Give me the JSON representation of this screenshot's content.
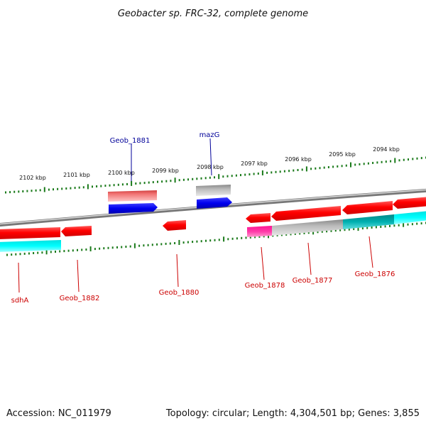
{
  "title": "Geobacter sp. FRC-32, complete genome",
  "footer": {
    "accession": "Accession: NC_011979",
    "summary": "Topology: circular; Length: 4,304,501 bp; Genes: 3,855"
  },
  "scale_labels": [
    "2102 kbp",
    "2101 kbp",
    "2100 kbp",
    "2099 kbp",
    "2098 kbp",
    "2097 kbp",
    "2096 kbp",
    "2095 kbp",
    "2094 kbp"
  ],
  "gene_labels": {
    "geob_1881": "Geob_1881",
    "mazg": "mazG",
    "sdha": "sdhA",
    "geob_1882": "Geob_1882",
    "geob_1880": "Geob_1880",
    "geob_1878": "Geob_1878",
    "geob_1877": "Geob_1877",
    "geob_1876": "Geob_1876"
  },
  "colors": {
    "gene_red": "#ff0000",
    "gene_blue": "#0000ee",
    "gene_pink": "#ff1493",
    "gene_grey": "#aaaaaa",
    "gene_cyan": "#00ffff",
    "backbone": "#888888",
    "tick_green": "#1a7a1a",
    "label_red": "#cc0000",
    "label_blue": "#000099"
  }
}
